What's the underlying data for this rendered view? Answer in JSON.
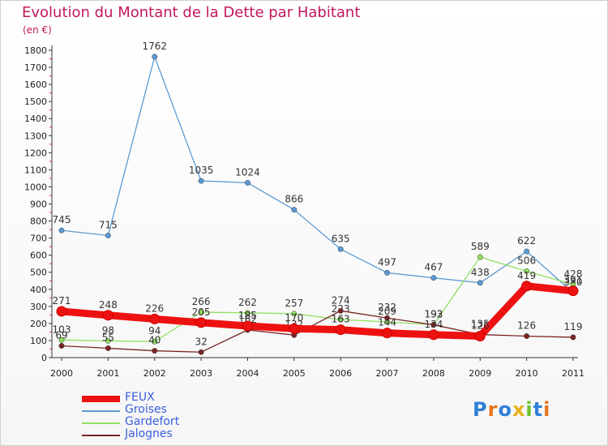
{
  "title": "Evolution du Montant de la Dette par Habitant",
  "subtitle": "(en €)",
  "logo": {
    "text": "Proxiti",
    "letter_colors": [
      "#2f7fd8",
      "#e8731c",
      "#2f7fd8",
      "#e8b21c",
      "#6cbf2a",
      "#2f7fd8",
      "#e8731c"
    ]
  },
  "chart_data": {
    "type": "line",
    "categories": [
      "2000",
      "2001",
      "2002",
      "2003",
      "2004",
      "2005",
      "2006",
      "2007",
      "2008",
      "2009",
      "2010",
      "2011"
    ],
    "ylim": [
      0,
      1800
    ],
    "yticks": [
      0,
      100,
      200,
      300,
      400,
      500,
      600,
      700,
      800,
      900,
      1000,
      1100,
      1200,
      1300,
      1400,
      1500,
      1600,
      1700,
      1800
    ],
    "grid": false,
    "legend_position": "bottom-left",
    "series": [
      {
        "name": "Groises",
        "color": "#5b9bd5",
        "values": [
          745,
          715,
          1762,
          1035,
          1024,
          866,
          635,
          497,
          467,
          438,
          622,
          380
        ],
        "labels": [
          "745",
          "715",
          "1762",
          "1035",
          "1024",
          "866",
          "635",
          "497",
          "467",
          "438",
          "622",
          "380"
        ]
      },
      {
        "name": "Gardefort",
        "color": "#90e060",
        "values": [
          103,
          98,
          94,
          266,
          262,
          257,
          223,
          209,
          193,
          589,
          506,
          428
        ],
        "labels": [
          "103",
          "98",
          "94",
          "266",
          "262",
          "257",
          "223",
          "209",
          "193",
          "589",
          "506",
          "428"
        ]
      },
      {
        "name": "Jalognes",
        "color": "#7a2424",
        "values": [
          69,
          55,
          40,
          32,
          162,
          132,
          274,
          232,
          192,
          135,
          126,
          119
        ],
        "labels": [
          "69",
          "55",
          "40",
          "32",
          "162",
          "132",
          "274",
          "232",
          "192",
          "135",
          "126",
          "119"
        ]
      },
      {
        "name": "FEUX",
        "color": "#ee1111",
        "values": [
          271,
          248,
          226,
          205,
          185,
          170,
          163,
          144,
          134,
          126,
          419,
          391
        ],
        "labels": [
          "271",
          "248",
          "226",
          "205",
          "185",
          "170",
          "163",
          "144",
          "134",
          "126",
          "419",
          "391"
        ]
      }
    ]
  }
}
